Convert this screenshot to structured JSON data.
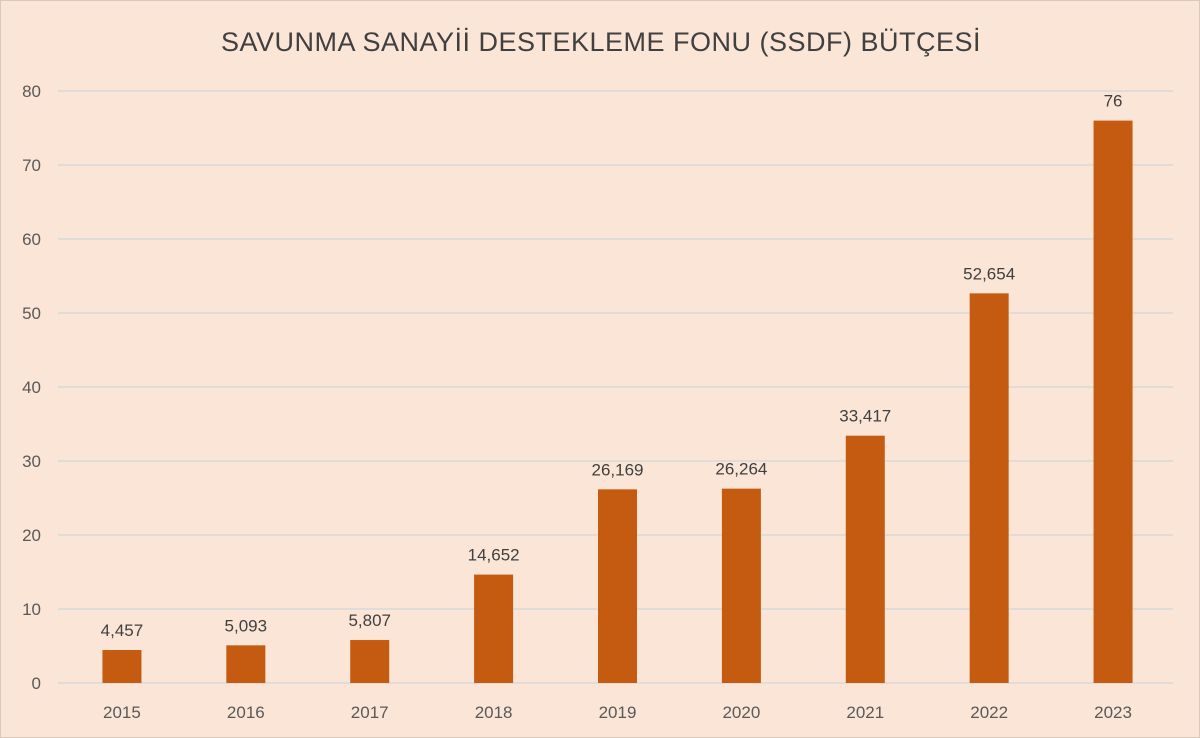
{
  "chart_data": {
    "type": "bar",
    "title": "SAVUNMA SANAYİİ DESTEKLEME FONU (SSDF) BÜTÇESİ",
    "categories": [
      "2015",
      "2016",
      "2017",
      "2018",
      "2019",
      "2020",
      "2021",
      "2022",
      "2023"
    ],
    "values": [
      4.457,
      5.093,
      5.807,
      14.652,
      26.169,
      26.264,
      33.417,
      52.654,
      76
    ],
    "data_labels": [
      "4,457",
      "5,093",
      "5,807",
      "14,652",
      "26,169",
      "26,264",
      "33,417",
      "52,654",
      "76"
    ],
    "ylim": [
      0,
      80
    ],
    "yticks": [
      "0",
      "10",
      "20",
      "30",
      "40",
      "50",
      "60",
      "70",
      "80"
    ],
    "xlabel": "",
    "ylabel": "",
    "grid": true,
    "legend": "none",
    "colors": {
      "bar": "#c55a11",
      "background": "#fbe5d6",
      "gridline": "#d9d9d9"
    }
  }
}
